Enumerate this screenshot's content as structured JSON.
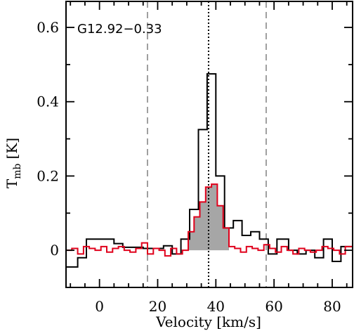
{
  "chart_data": {
    "type": "line",
    "annotation": "G12.92−0.33",
    "xlabel": "Velocity [km/s]",
    "ylabel_main": "T",
    "ylabel_sub": "mb",
    "ylabel_unit": "[K]",
    "xlim": [
      -11.5,
      87
    ],
    "ylim": [
      -0.1,
      0.67
    ],
    "xticks": [
      0,
      20,
      40,
      60,
      80
    ],
    "yticks": [
      0,
      0.2,
      0.4,
      0.6
    ],
    "ytick_labels": [
      "0",
      "0.2",
      "0.4",
      "0.6"
    ],
    "dashed_lines_x": [
      16.5,
      57.3
    ],
    "dotted_line_x": 37.5,
    "colors": {
      "black_series": "#000000",
      "red_series": "#e0001b",
      "fill": "#a6a6a6",
      "dashed": "#888888"
    },
    "series": [
      {
        "color": "black",
        "step_edges": [
          -11.5,
          -7.5,
          -4.5,
          5,
          8,
          15,
          22,
          25,
          28,
          31,
          34,
          37,
          40,
          43,
          46,
          49,
          52,
          55,
          58,
          61,
          65,
          68,
          71,
          74,
          77,
          80,
          83,
          87
        ],
        "values": [
          -0.045,
          -0.02,
          0.03,
          0.018,
          0.008,
          0.005,
          0.012,
          -0.01,
          0.03,
          0.11,
          0.325,
          0.475,
          0.2,
          0.06,
          0.08,
          0.04,
          0.05,
          0.03,
          -0.01,
          0.03,
          0.0,
          -0.01,
          0.0,
          -0.02,
          0.03,
          -0.03,
          0.01
        ]
      },
      {
        "color": "red",
        "step_edges": [
          -11.5,
          -9.5,
          -7.5,
          -5.5,
          -3.5,
          -1.5,
          0.5,
          2.5,
          4.5,
          6.5,
          8.5,
          10.5,
          12.5,
          14.5,
          16.5,
          18.5,
          20.5,
          22.5,
          24.5,
          26.5,
          28.5,
          30.5,
          32.5,
          34.5,
          36.5,
          38.5,
          40.5,
          42.5,
          44.5,
          46.5,
          48.5,
          50.5,
          52.5,
          54.5,
          56.5,
          58.5,
          60.5,
          62.5,
          64.5,
          66.5,
          68.5,
          70.5,
          72.5,
          74.5,
          76.5,
          78.5,
          80.5,
          82.5,
          84.5,
          87
        ],
        "values": [
          0.0,
          0.005,
          -0.01,
          0.01,
          0.005,
          0.0,
          0.01,
          -0.005,
          0.005,
          0.01,
          0.0,
          -0.005,
          0.005,
          0.02,
          -0.01,
          0.005,
          0.0,
          -0.015,
          0.005,
          -0.01,
          0.0,
          0.05,
          0.09,
          0.13,
          0.17,
          0.178,
          0.12,
          0.06,
          0.01,
          0.005,
          -0.005,
          0.01,
          0.005,
          0.0,
          0.015,
          0.005,
          -0.005,
          0.01,
          0.0,
          -0.01,
          0.005,
          0.0,
          -0.005,
          0.0,
          0.01,
          0.005,
          0.0,
          -0.01,
          0.01
        ]
      }
    ]
  }
}
